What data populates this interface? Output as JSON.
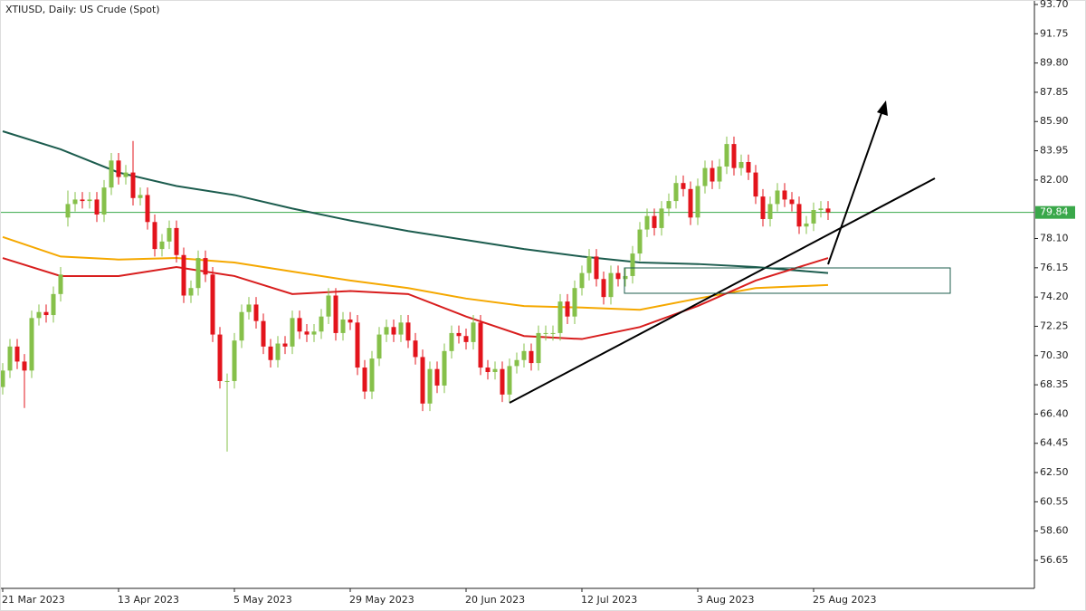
{
  "chart_data": {
    "type": "candlestick",
    "title": "XTIUSD, Daily:  US Crude (Spot)",
    "categories": [
      "21 Mar 2023",
      null,
      null,
      null,
      null,
      null,
      null,
      null,
      null,
      null,
      null,
      null,
      null,
      null,
      null,
      null,
      "13 Apr 2023",
      null,
      null,
      null,
      null,
      null,
      null,
      null,
      null,
      null,
      null,
      null,
      null,
      null,
      null,
      null,
      "5 May 2023",
      null,
      null,
      null,
      null,
      null,
      null,
      null,
      null,
      null,
      null,
      null,
      null,
      null,
      null,
      null,
      "29 May 2023",
      null,
      null,
      null,
      null,
      null,
      null,
      null,
      null,
      null,
      null,
      null,
      null,
      null,
      null,
      null,
      "20 Jun 2023",
      null,
      null,
      null,
      null,
      null,
      null,
      null,
      null,
      null,
      null,
      null,
      null,
      null,
      null,
      null,
      "12 Jul 2023",
      null,
      null,
      null,
      null,
      null,
      null,
      null,
      null,
      null,
      null,
      null,
      null,
      null,
      null,
      null,
      "3 Aug 2023",
      null,
      null,
      null,
      null,
      null,
      null,
      null,
      null,
      null,
      null,
      null,
      null,
      null,
      null,
      null,
      "25 Aug 2023",
      null,
      null
    ],
    "open": [
      68.2,
      69.3,
      70.9,
      69.9,
      69.3,
      72.8,
      73.2,
      73.0,
      74.4,
      79.5,
      80.4,
      80.7,
      80.6,
      80.7,
      79.7,
      81.5,
      83.3,
      82.2,
      82.5,
      80.8,
      81.0,
      79.2,
      77.4,
      77.9,
      78.8,
      77.0,
      74.3,
      74.8,
      76.8,
      75.7,
      71.7,
      68.6,
      68.6,
      71.3,
      73.2,
      73.7,
      72.6,
      70.9,
      70.0,
      71.1,
      70.9,
      72.8,
      71.9,
      71.7,
      71.9,
      72.9,
      74.3,
      71.8,
      72.7,
      72.5,
      69.5,
      67.9,
      70.1,
      71.7,
      72.2,
      71.7,
      72.5,
      71.3,
      70.2,
      67.1,
      69.4,
      68.3,
      70.6,
      71.8,
      71.6,
      71.2,
      72.5,
      69.5,
      69.2,
      69.4,
      67.7,
      69.6,
      70.0,
      70.6,
      69.8,
      71.8,
      71.8,
      71.8,
      73.9,
      72.9,
      74.8,
      75.8,
      76.9,
      75.4,
      74.2,
      75.8,
      75.4,
      75.6,
      77.1,
      78.7,
      79.6,
      78.8,
      80.1,
      80.6,
      81.8,
      81.4,
      79.5,
      81.6,
      82.8,
      81.9,
      82.9,
      84.4,
      82.8,
      83.2,
      82.5,
      80.9,
      79.4,
      80.4,
      81.3,
      80.7,
      80.4,
      78.9,
      79.1,
      80.0,
      80.1
    ],
    "high": [
      69.8,
      71.4,
      71.4,
      70.4,
      73.3,
      73.7,
      73.7,
      74.9,
      76.2,
      81.3,
      81.2,
      81.2,
      81.2,
      81.2,
      82.0,
      83.8,
      83.8,
      83.0,
      84.6,
      81.5,
      81.5,
      79.7,
      78.4,
      79.3,
      79.3,
      77.5,
      75.3,
      77.3,
      77.3,
      76.2,
      72.2,
      69.1,
      71.8,
      73.7,
      74.2,
      74.2,
      73.1,
      71.4,
      71.6,
      71.6,
      73.3,
      73.3,
      72.4,
      72.4,
      73.4,
      74.8,
      74.8,
      73.2,
      73.2,
      73.0,
      70.0,
      70.6,
      72.2,
      72.7,
      72.7,
      73.0,
      73.0,
      71.8,
      70.7,
      69.9,
      69.9,
      71.1,
      72.3,
      72.3,
      72.1,
      73.0,
      73.0,
      70.0,
      69.9,
      69.9,
      70.1,
      70.5,
      71.1,
      71.1,
      72.3,
      72.3,
      72.3,
      74.4,
      74.4,
      75.3,
      76.3,
      77.4,
      77.4,
      75.9,
      76.3,
      76.3,
      76.1,
      77.6,
      79.2,
      80.1,
      80.1,
      80.6,
      81.1,
      82.3,
      82.3,
      81.9,
      82.1,
      83.3,
      83.3,
      83.4,
      84.9,
      84.9,
      83.7,
      83.7,
      83.0,
      81.4,
      80.9,
      81.8,
      81.8,
      81.2,
      80.9,
      79.6,
      80.5,
      80.6,
      80.6
    ],
    "low": [
      67.7,
      68.8,
      69.4,
      66.8,
      68.8,
      72.3,
      72.5,
      72.5,
      73.9,
      78.9,
      79.9,
      80.1,
      80.1,
      79.2,
      79.2,
      81.0,
      81.7,
      81.7,
      80.3,
      80.3,
      78.7,
      76.9,
      76.9,
      77.4,
      76.5,
      73.8,
      73.8,
      74.3,
      75.2,
      71.2,
      68.1,
      63.9,
      68.1,
      70.8,
      72.7,
      72.1,
      70.4,
      69.5,
      69.5,
      70.4,
      70.4,
      71.4,
      71.2,
      71.2,
      71.4,
      72.4,
      71.3,
      71.3,
      72.0,
      69.0,
      67.4,
      67.4,
      69.6,
      71.2,
      71.2,
      71.2,
      70.8,
      69.7,
      66.6,
      66.6,
      67.8,
      67.8,
      70.1,
      71.1,
      70.7,
      70.7,
      69.0,
      68.7,
      68.7,
      67.2,
      67.2,
      69.1,
      69.5,
      69.3,
      69.3,
      71.3,
      71.3,
      71.3,
      72.4,
      72.4,
      74.3,
      75.3,
      74.9,
      73.7,
      73.7,
      74.9,
      74.9,
      75.1,
      76.6,
      78.2,
      78.3,
      78.3,
      79.6,
      80.1,
      80.9,
      79.0,
      79.0,
      81.1,
      81.4,
      81.4,
      82.4,
      82.3,
      82.3,
      82.0,
      80.4,
      78.9,
      78.9,
      79.9,
      80.2,
      79.9,
      78.4,
      78.4,
      78.6,
      79.5,
      79.34
    ],
    "close": [
      69.3,
      70.9,
      69.9,
      69.3,
      72.8,
      73.2,
      73.0,
      74.4,
      75.7,
      80.4,
      80.7,
      80.6,
      80.7,
      79.7,
      81.5,
      83.3,
      82.2,
      82.5,
      80.8,
      81.0,
      79.2,
      77.4,
      77.9,
      78.8,
      77.0,
      74.3,
      74.8,
      76.8,
      75.7,
      71.7,
      68.6,
      68.6,
      71.3,
      73.2,
      73.7,
      72.6,
      70.9,
      70.0,
      71.1,
      70.9,
      72.8,
      71.9,
      71.7,
      71.9,
      72.9,
      74.3,
      71.8,
      72.7,
      72.5,
      69.5,
      67.9,
      70.1,
      71.7,
      72.2,
      71.7,
      72.5,
      71.3,
      70.2,
      67.1,
      69.4,
      68.3,
      70.6,
      71.8,
      71.6,
      71.2,
      72.5,
      69.5,
      69.2,
      69.4,
      67.7,
      69.6,
      70.0,
      70.6,
      69.8,
      71.8,
      71.8,
      71.8,
      73.9,
      72.9,
      74.8,
      75.8,
      76.9,
      75.4,
      74.2,
      75.8,
      75.4,
      75.6,
      77.1,
      78.7,
      79.6,
      78.8,
      80.1,
      80.6,
      81.8,
      81.4,
      79.5,
      81.6,
      82.8,
      81.9,
      82.9,
      84.4,
      82.8,
      83.2,
      82.5,
      80.9,
      79.4,
      80.4,
      81.3,
      80.7,
      80.4,
      78.9,
      79.1,
      80.0,
      80.1,
      79.84
    ],
    "up_color": "#86c04a",
    "down_color": "#e3141c",
    "series": [
      {
        "color": "#1c5c4e",
        "x": [
          0,
          8,
          16,
          24,
          32,
          40,
          48,
          56,
          64,
          72,
          80,
          88,
          96,
          104,
          114
        ],
        "values": [
          85.25,
          84.05,
          82.5,
          81.6,
          81.0,
          80.1,
          79.3,
          78.6,
          78.0,
          77.4,
          76.9,
          76.5,
          76.4,
          76.2,
          75.8
        ]
      },
      {
        "color": "#f5a800",
        "x": [
          0,
          8,
          16,
          24,
          32,
          40,
          48,
          56,
          64,
          72,
          80,
          88,
          96,
          104,
          114
        ],
        "values": [
          78.2,
          76.9,
          76.7,
          76.8,
          76.5,
          75.9,
          75.3,
          74.8,
          74.1,
          73.6,
          73.5,
          73.35,
          74.1,
          74.8,
          75.0
        ]
      },
      {
        "color": "#d81e1e",
        "x": [
          0,
          8,
          16,
          24,
          32,
          40,
          48,
          56,
          64,
          72,
          80,
          88,
          96,
          104,
          114
        ],
        "values": [
          76.8,
          75.6,
          75.6,
          76.2,
          75.6,
          74.4,
          74.6,
          74.4,
          72.9,
          71.6,
          71.4,
          72.2,
          73.6,
          75.3,
          76.8
        ]
      }
    ],
    "last_price": 79.84,
    "last_price_color": "#3aa84a",
    "ylim": [
      54.78,
      94.0
    ],
    "yticks": [
      {
        "value": 93.7,
        "label": "93.70"
      },
      91.75,
      {
        "value": 89.8,
        "label": "89.80"
      },
      87.85,
      {
        "value": 85.9,
        "label": "85.90"
      },
      83.95,
      {
        "value": 82.0,
        "label": "82.00"
      },
      {
        "value": 78.1,
        "label": "78.10"
      },
      76.15,
      {
        "value": 74.2,
        "label": "74.20"
      },
      72.25,
      {
        "value": 70.3,
        "label": "70.30"
      },
      68.35,
      {
        "value": 66.4,
        "label": "66.40"
      },
      64.45,
      {
        "value": 62.5,
        "label": "62.50"
      },
      60.55,
      {
        "value": 58.6,
        "label": "58.60"
      },
      56.65
    ]
  }
}
